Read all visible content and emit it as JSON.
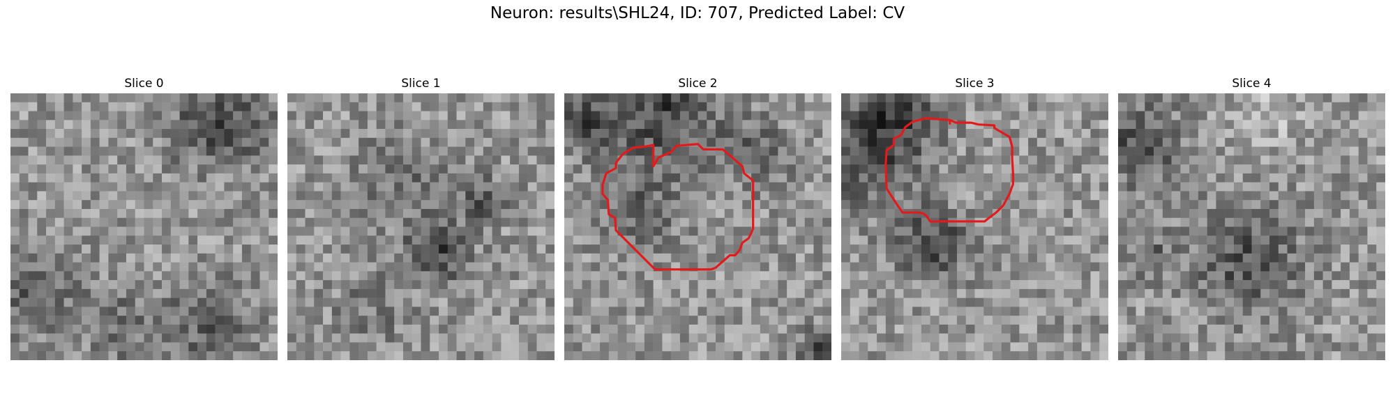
{
  "figure": {
    "title": "Neuron: results\\SHL24, ID: 707, Predicted Label: CV"
  },
  "panels": [
    {
      "title": "Slice 0",
      "seed": 11,
      "blobs": [
        [
          0.72,
          0.12,
          0.1,
          -70
        ],
        [
          0.88,
          0.1,
          0.08,
          -40
        ],
        [
          0.08,
          0.72,
          0.12,
          -55
        ],
        [
          0.4,
          0.85,
          0.1,
          -35
        ],
        [
          0.72,
          0.85,
          0.12,
          -50
        ]
      ],
      "has_roi": false
    },
    {
      "title": "Slice 1",
      "seed": 23,
      "blobs": [
        [
          0.55,
          0.57,
          0.08,
          -85
        ],
        [
          0.72,
          0.38,
          0.06,
          -60
        ],
        [
          0.4,
          0.3,
          0.12,
          -35
        ],
        [
          0.3,
          0.78,
          0.1,
          -30
        ]
      ],
      "has_roi": false
    },
    {
      "title": "Slice 2",
      "seed": 37,
      "blobs": [
        [
          0.35,
          0.05,
          0.14,
          -80
        ],
        [
          0.05,
          0.1,
          0.07,
          -70
        ],
        [
          0.25,
          0.4,
          0.12,
          -45
        ],
        [
          0.7,
          0.2,
          0.1,
          -40
        ],
        [
          0.95,
          0.95,
          0.06,
          -80
        ]
      ],
      "has_roi": true
    },
    {
      "title": "Slice 3",
      "seed": 51,
      "blobs": [
        [
          0.08,
          0.2,
          0.14,
          -70
        ],
        [
          0.33,
          0.55,
          0.09,
          -80
        ],
        [
          0.2,
          0.05,
          0.1,
          -60
        ]
      ],
      "has_roi": true
    },
    {
      "title": "Slice 4",
      "seed": 67,
      "blobs": [
        [
          0.07,
          0.18,
          0.1,
          -75
        ],
        [
          0.47,
          0.62,
          0.14,
          -65
        ],
        [
          0.1,
          0.6,
          0.06,
          -50
        ],
        [
          0.55,
          0.05,
          0.1,
          30
        ]
      ],
      "has_roi": false
    }
  ],
  "roi_color": "#e31a1c"
}
